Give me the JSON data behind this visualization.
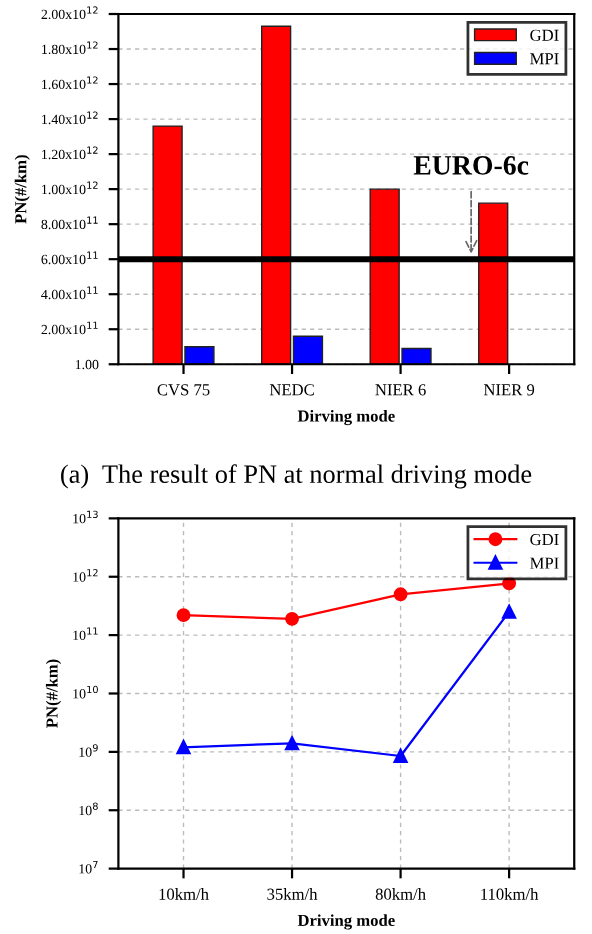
{
  "chart_data": [
    {
      "type": "bar",
      "categories": [
        "CVS 75",
        "NEDC",
        "NIER 6",
        "NIER 9"
      ],
      "xlabel": "Dirving mode",
      "ylabel": "PN(#/km)",
      "series": [
        {
          "name": "GDI",
          "color": "#ff0000",
          "values": [
            1360000000000.0,
            1930000000000.0,
            1000000000000.0,
            920000000000.0
          ]
        },
        {
          "name": "MPI",
          "color": "#0000ff",
          "values": [
            100000000000.0,
            160000000000.0,
            90000000000.0,
            null
          ]
        }
      ],
      "ylim": [
        1,
        2000000000000.0
      ],
      "yticks": [
        {
          "value": 1,
          "label": "1.00"
        },
        {
          "value": 200000000000.0,
          "label": "2.00x10$^{11}$"
        },
        {
          "value": 400000000000.0,
          "label": "4.00x10$^{11}$"
        },
        {
          "value": 600000000000.0,
          "label": "6.00x10$^{11}$"
        },
        {
          "value": 800000000000.0,
          "label": "8.00x10$^{11}$"
        },
        {
          "value": 1000000000000.0,
          "label": "1.00x10$^{12}$"
        },
        {
          "value": 1200000000000.0,
          "label": "1.20x10$^{12}$"
        },
        {
          "value": 1400000000000.0,
          "label": "1.40x10$^{12}$"
        },
        {
          "value": 1600000000000.0,
          "label": "1.60x10$^{12}$"
        },
        {
          "value": 1800000000000.0,
          "label": "1.80x10$^{12}$"
        },
        {
          "value": 2000000000000.0,
          "label": "2.00x10$^{12}$"
        }
      ],
      "ref_lines": [
        {
          "axis": "y",
          "value": 600000000000.0,
          "label": "EURO-6c",
          "color": "#000000",
          "line_style": "solid"
        }
      ],
      "annotations": [
        "(a)  The result of PN at normal driving mode"
      ],
      "grid": "y",
      "legend": "top right"
    },
    {
      "type": "line",
      "categories": [
        "10km/h",
        "35km/h",
        "80km/h",
        "110km/h"
      ],
      "xlabel": "Driving mode",
      "ylabel": "PN(#/km)",
      "log": "y",
      "series": [
        {
          "name": "GDI",
          "color": "#ff0000",
          "marker": "circle",
          "values": [
            220000000000.0,
            190000000000.0,
            500000000000.0,
            770000000000.0
          ]
        },
        {
          "name": "MPI",
          "color": "#0000ff",
          "marker": "triangle",
          "values": [
            1200000000.0,
            1400000000.0,
            850000000.0,
            250000000000.0
          ]
        }
      ],
      "ylim": [
        10000000.0,
        10000000000000.0
      ],
      "yticks": [
        {
          "value": 10000000.0,
          "label": "10$^{7}$"
        },
        {
          "value": 100000000.0,
          "label": "10$^{8}$"
        },
        {
          "value": 1000000000.0,
          "label": "10$^{9}$"
        },
        {
          "value": 10000000000.0,
          "label": "10$^{10}$"
        },
        {
          "value": 100000000000.0,
          "label": "10$^{11}$"
        },
        {
          "value": 1000000000000.0,
          "label": "10$^{12}$"
        },
        {
          "value": 10000000000000.0,
          "label": "10$^{13}$"
        }
      ],
      "grid": true,
      "legend": "top right",
      "line_style": "solid"
    }
  ]
}
